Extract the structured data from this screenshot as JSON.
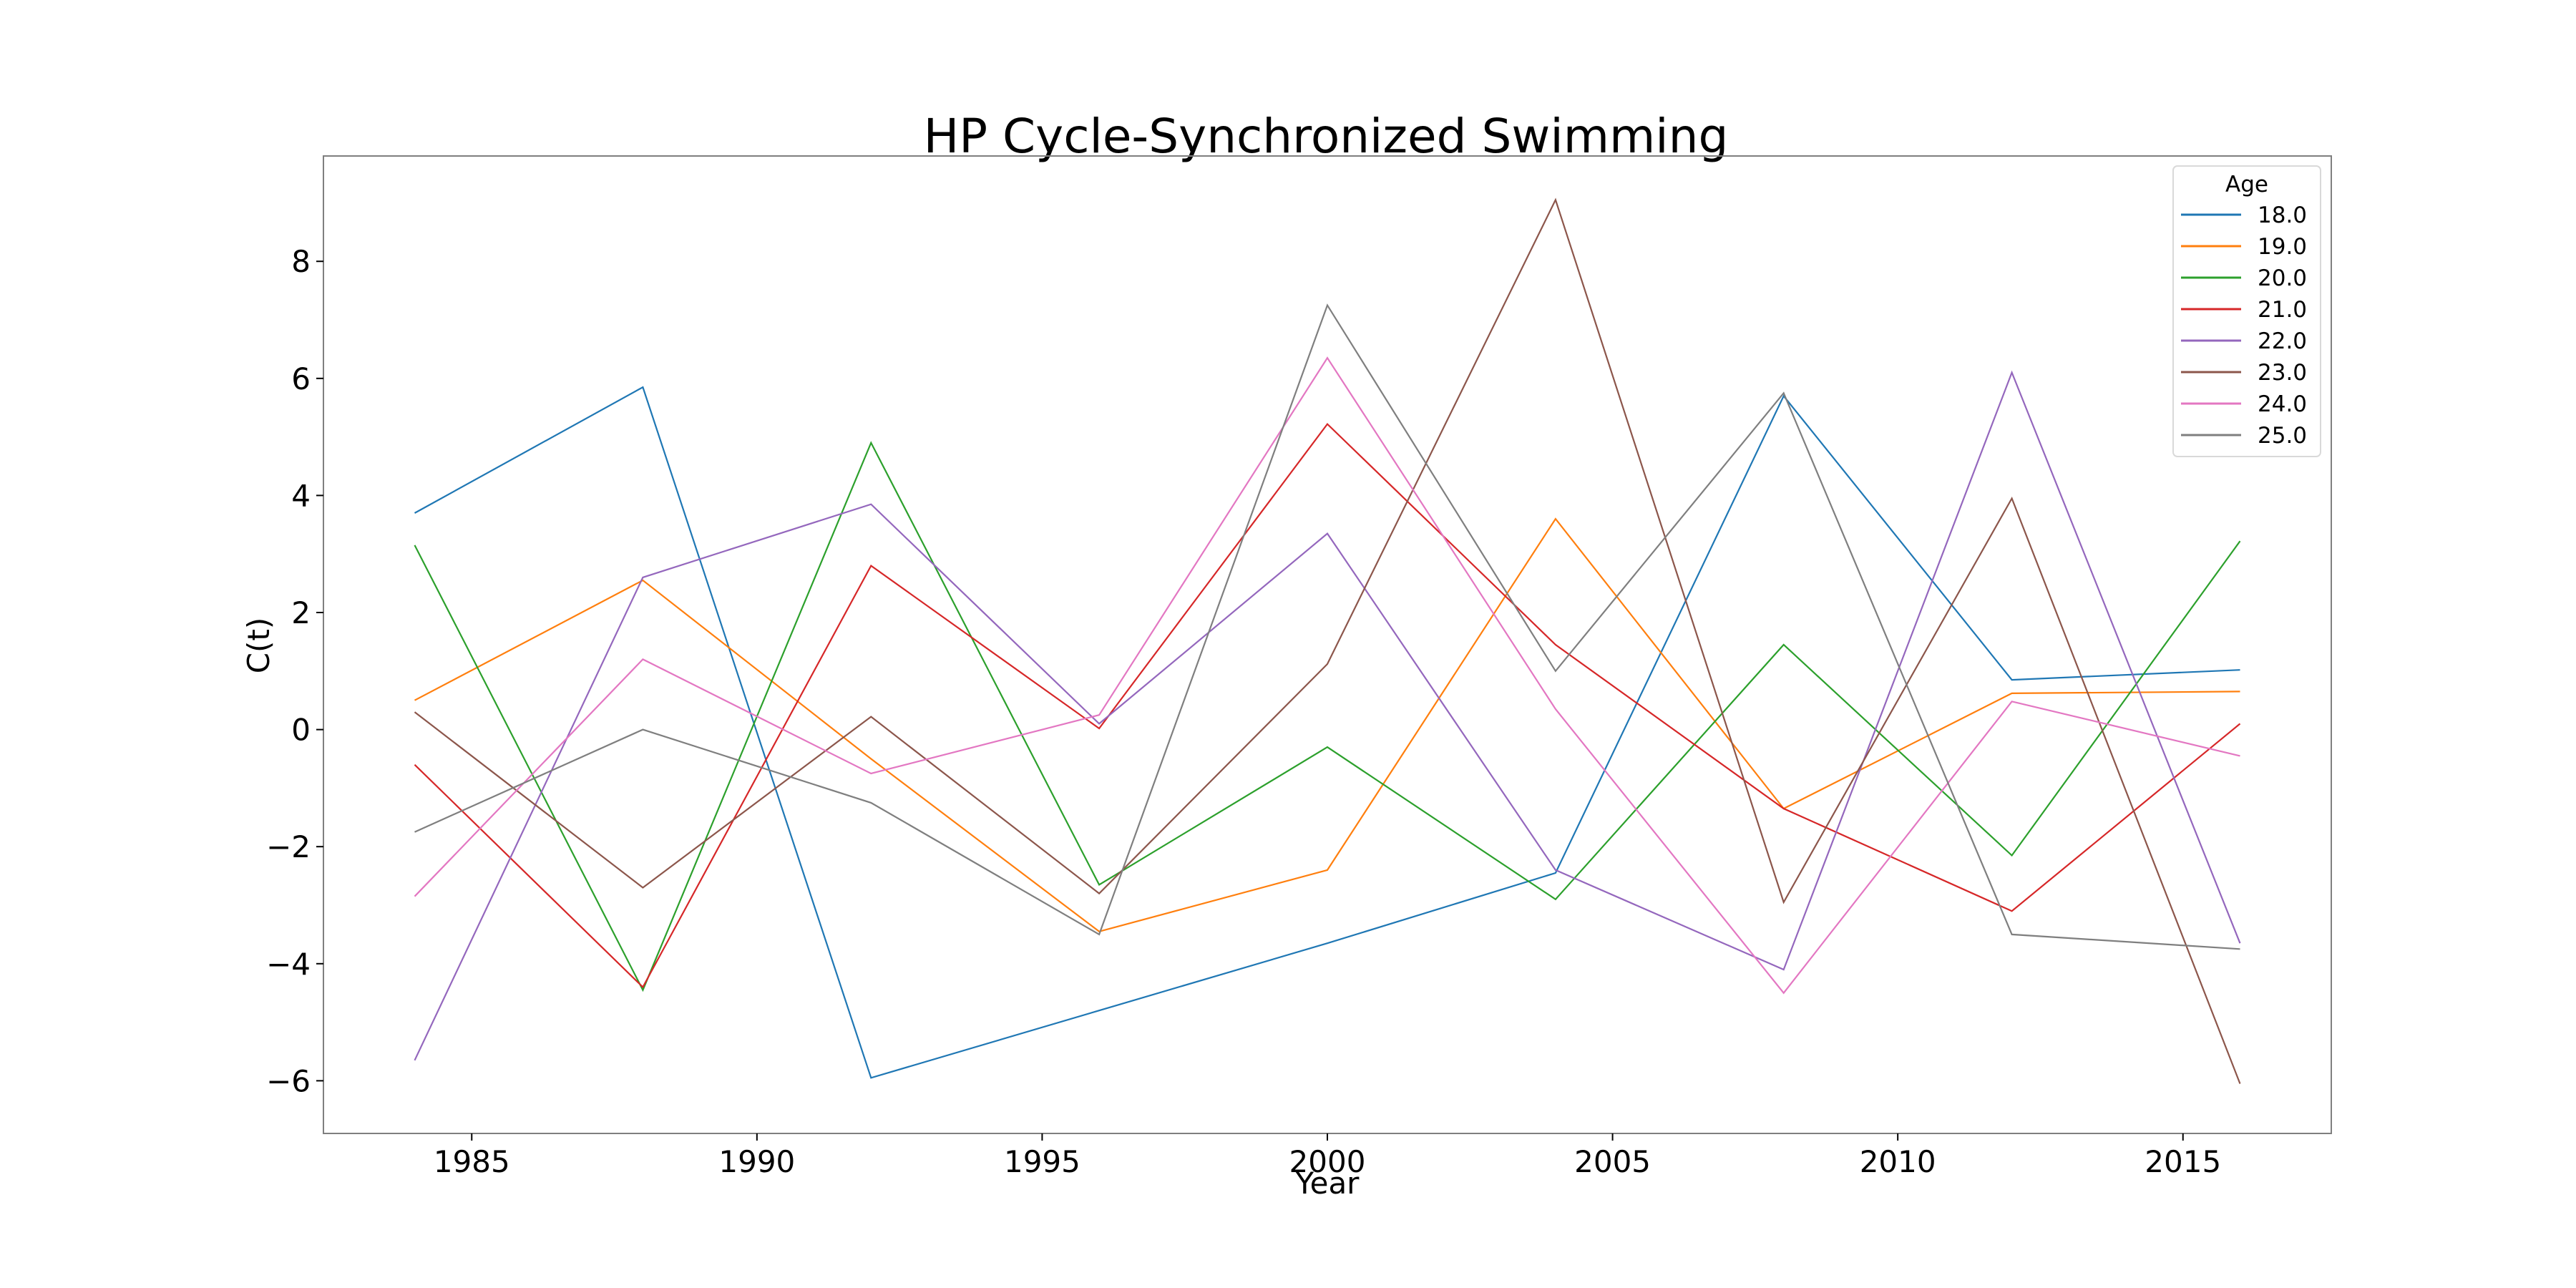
{
  "chart_data": {
    "type": "line",
    "title": "HP Cycle-Synchronized Swimming",
    "xlabel": "Year",
    "ylabel": "C(t)",
    "x": [
      1984,
      1988,
      1992,
      1996,
      2000,
      2004,
      2008,
      2012,
      2016
    ],
    "xlim": [
      1982.4,
      2017.6
    ],
    "ylim": [
      -6.9,
      9.8
    ],
    "xticks": [
      1985,
      1990,
      1995,
      2000,
      2005,
      2010,
      2015
    ],
    "yticks": [
      -6,
      -4,
      -2,
      0,
      2,
      4,
      6,
      8
    ],
    "grid": false,
    "legend": {
      "title": "Age",
      "placement": "upper right"
    },
    "series": [
      {
        "name": "18.0",
        "color": "#1f77b4",
        "values": [
          3.7,
          5.85,
          -5.95,
          -4.8,
          -3.65,
          -2.45,
          5.7,
          0.85,
          1.02
        ]
      },
      {
        "name": "19.0",
        "color": "#ff7f0e",
        "values": [
          0.5,
          2.55,
          -0.5,
          -3.45,
          -2.4,
          3.6,
          -1.35,
          0.62,
          0.65
        ]
      },
      {
        "name": "20.0",
        "color": "#2ca02c",
        "values": [
          3.15,
          -4.45,
          4.9,
          -2.65,
          -0.3,
          -2.9,
          1.45,
          -2.15,
          3.22
        ]
      },
      {
        "name": "21.0",
        "color": "#d62728",
        "values": [
          -0.6,
          -4.4,
          2.8,
          0.02,
          5.22,
          1.45,
          -1.35,
          -3.1,
          0.1
        ]
      },
      {
        "name": "22.0",
        "color": "#9467bd",
        "values": [
          -5.65,
          2.6,
          3.85,
          0.1,
          3.35,
          -2.4,
          -4.1,
          6.1,
          -3.65
        ]
      },
      {
        "name": "23.0",
        "color": "#8c564b",
        "values": [
          0.3,
          -2.7,
          0.22,
          -2.8,
          1.12,
          9.05,
          -2.95,
          3.95,
          -6.05
        ]
      },
      {
        "name": "24.0",
        "color": "#e377c2",
        "values": [
          -2.85,
          1.2,
          -0.75,
          0.25,
          6.35,
          0.35,
          -4.5,
          0.48,
          -0.45
        ]
      },
      {
        "name": "25.0",
        "color": "#7f7f7f",
        "values": [
          -1.75,
          0.0,
          -1.25,
          -3.5,
          7.25,
          1.0,
          5.75,
          -3.5,
          -3.75
        ]
      }
    ]
  }
}
